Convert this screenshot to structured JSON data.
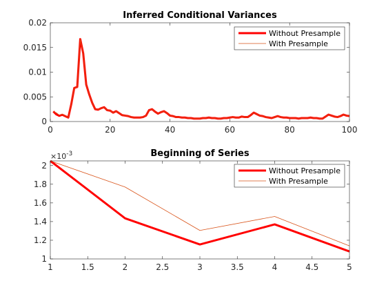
{
  "chart_data": [
    {
      "type": "line",
      "title": "Inferred Conditional Variances",
      "xlabel": "",
      "ylabel": "",
      "xlim": [
        0,
        100
      ],
      "ylim": [
        0,
        0.02
      ],
      "xticks": [
        0,
        20,
        40,
        60,
        80,
        100
      ],
      "xtick_labels": [
        "0",
        "20",
        "40",
        "60",
        "80",
        "100"
      ],
      "yticks": [
        0,
        0.005,
        0.01,
        0.015,
        0.02
      ],
      "ytick_labels": [
        "0",
        "0.005",
        "0.01",
        "0.015",
        "0.02"
      ],
      "grid": false,
      "legend_position": "top-right",
      "series": [
        {
          "name": "Without Presample",
          "color": "#ff0000",
          "x": [
            1,
            2,
            3,
            4,
            5,
            6,
            7,
            8,
            9,
            10,
            11,
            12,
            13,
            14,
            15,
            16,
            17,
            18,
            19,
            20,
            21,
            22,
            23,
            24,
            25,
            26,
            27,
            28,
            29,
            30,
            31,
            32,
            33,
            34,
            35,
            36,
            37,
            38,
            39,
            40,
            41,
            42,
            43,
            44,
            45,
            46,
            47,
            48,
            49,
            50,
            51,
            52,
            53,
            54,
            55,
            56,
            57,
            58,
            59,
            60,
            61,
            62,
            63,
            64,
            65,
            66,
            67,
            68,
            69,
            70,
            71,
            72,
            73,
            74,
            75,
            76,
            77,
            78,
            79,
            80,
            81,
            82,
            83,
            84,
            85,
            86,
            87,
            88,
            89,
            90,
            91,
            92,
            93,
            94,
            95,
            96,
            97,
            98,
            99,
            100
          ],
          "y": [
            0.00205,
            0.00144,
            0.00116,
            0.00137,
            0.00108,
            0.0008,
            0.0035,
            0.0068,
            0.007,
            0.0167,
            0.0138,
            0.0075,
            0.0055,
            0.0038,
            0.0025,
            0.0024,
            0.0027,
            0.0029,
            0.0023,
            0.0022,
            0.0018,
            0.0021,
            0.0017,
            0.0013,
            0.0012,
            0.0011,
            0.0009,
            0.0008,
            0.0008,
            0.0008,
            0.0009,
            0.0012,
            0.0023,
            0.0025,
            0.002,
            0.0016,
            0.0019,
            0.0021,
            0.0017,
            0.0012,
            0.0011,
            0.0009,
            0.0009,
            0.0008,
            0.0008,
            0.0007,
            0.0007,
            0.0006,
            0.0006,
            0.0006,
            0.0007,
            0.0007,
            0.0008,
            0.0007,
            0.0007,
            0.0006,
            0.0006,
            0.0007,
            0.0007,
            0.0008,
            0.0009,
            0.0008,
            0.0008,
            0.001,
            0.0009,
            0.0009,
            0.0013,
            0.0018,
            0.0015,
            0.0012,
            0.0011,
            0.0009,
            0.0008,
            0.0007,
            0.0009,
            0.0011,
            0.0009,
            0.0008,
            0.0008,
            0.0007,
            0.0007,
            0.0007,
            0.0006,
            0.0007,
            0.0007,
            0.0007,
            0.0008,
            0.0007,
            0.0007,
            0.0006,
            0.0006,
            0.001,
            0.0014,
            0.0012,
            0.001,
            0.0009,
            0.0011,
            0.0014,
            0.0012,
            0.0011
          ]
        },
        {
          "name": "With Presample",
          "color": "#d95319",
          "x": [
            1,
            2,
            3,
            4,
            5,
            6,
            7,
            8,
            9,
            10,
            11,
            12,
            13,
            14,
            15,
            16,
            17,
            18,
            19,
            20,
            21,
            22,
            23,
            24,
            25,
            26,
            27,
            28,
            29,
            30,
            31,
            32,
            33,
            34,
            35,
            36,
            37,
            38,
            39,
            40,
            41,
            42,
            43,
            44,
            45,
            46,
            47,
            48,
            49,
            50,
            51,
            52,
            53,
            54,
            55,
            56,
            57,
            58,
            59,
            60,
            61,
            62,
            63,
            64,
            65,
            66,
            67,
            68,
            69,
            70,
            71,
            72,
            73,
            74,
            75,
            76,
            77,
            78,
            79,
            80,
            81,
            82,
            83,
            84,
            85,
            86,
            87,
            88,
            89,
            90,
            91,
            92,
            93,
            94,
            95,
            96,
            97,
            98,
            99,
            100
          ],
          "y": [
            0.00205,
            0.00177,
            0.00131,
            0.00146,
            0.00114,
            0.0008,
            0.0035,
            0.0068,
            0.007,
            0.0167,
            0.0138,
            0.0075,
            0.0055,
            0.0038,
            0.0025,
            0.0024,
            0.0027,
            0.0029,
            0.0023,
            0.0022,
            0.0018,
            0.0021,
            0.0017,
            0.0013,
            0.0012,
            0.0011,
            0.0009,
            0.0008,
            0.0008,
            0.0008,
            0.0009,
            0.0012,
            0.0023,
            0.0025,
            0.002,
            0.0016,
            0.0019,
            0.0021,
            0.0017,
            0.0012,
            0.0011,
            0.0009,
            0.0009,
            0.0008,
            0.0008,
            0.0007,
            0.0007,
            0.0006,
            0.0006,
            0.0006,
            0.0007,
            0.0007,
            0.0008,
            0.0007,
            0.0007,
            0.0006,
            0.0006,
            0.0007,
            0.0007,
            0.0008,
            0.0009,
            0.0008,
            0.0008,
            0.001,
            0.0009,
            0.0009,
            0.0013,
            0.0018,
            0.0015,
            0.0012,
            0.0011,
            0.0009,
            0.0008,
            0.0007,
            0.0009,
            0.0011,
            0.0009,
            0.0008,
            0.0008,
            0.0007,
            0.0007,
            0.0007,
            0.0006,
            0.0007,
            0.0007,
            0.0007,
            0.0008,
            0.0007,
            0.0007,
            0.0006,
            0.0006,
            0.001,
            0.0014,
            0.0012,
            0.001,
            0.0009,
            0.0011,
            0.0014,
            0.0012,
            0.0011
          ]
        }
      ]
    },
    {
      "type": "line",
      "title": "Beginning of Series",
      "xlabel": "",
      "ylabel": "",
      "xlim": [
        1,
        5
      ],
      "ylim": [
        1,
        2.05
      ],
      "y_exponent_label": "×10",
      "y_exponent": "-3",
      "xticks": [
        1,
        1.5,
        2,
        2.5,
        3,
        3.5,
        4,
        4.5,
        5
      ],
      "xtick_labels": [
        "1",
        "1.5",
        "2",
        "2.5",
        "3",
        "3.5",
        "4",
        "4.5",
        "5"
      ],
      "yticks": [
        1,
        1.2,
        1.4,
        1.6,
        1.8,
        2
      ],
      "ytick_labels": [
        "1",
        "1.2",
        "1.4",
        "1.6",
        "1.8",
        "2"
      ],
      "grid": false,
      "legend_position": "top-right",
      "series": [
        {
          "name": "Without Presample",
          "color": "#ff0000",
          "x": [
            1,
            2,
            3,
            4,
            5
          ],
          "y": [
            2.05,
            1.435,
            1.155,
            1.37,
            1.08
          ]
        },
        {
          "name": "With Presample",
          "color": "#d95319",
          "x": [
            1,
            2,
            3,
            4,
            5
          ],
          "y": [
            2.05,
            1.77,
            1.305,
            1.455,
            1.14
          ]
        }
      ]
    }
  ]
}
